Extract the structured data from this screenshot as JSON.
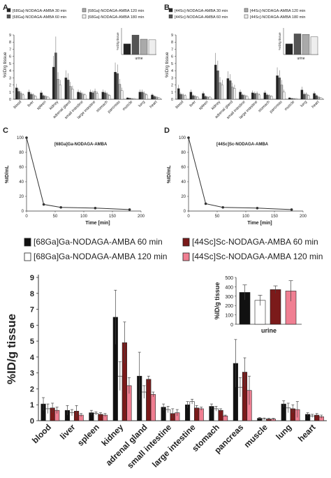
{
  "chart_data": [
    {
      "panel": "A",
      "type": "bar",
      "legend": [
        "[68Ga]-NODAGA-AMBA 30 min",
        "[68Ga]-NODAGA-AMBA 60 min",
        "[68Ga]-NODAGA-AMBA 120 min",
        "[68Ga]-NODAGA-AMBA 180 min"
      ],
      "ylabel": "%ID/g tissue",
      "ylim": [
        0,
        9
      ],
      "yticks": [
        "0",
        "1",
        "2",
        "3",
        "4",
        "5",
        "6",
        "7",
        "8",
        "9"
      ],
      "categories": [
        "blood",
        "liver",
        "spleen",
        "kidney",
        "adrenal gland",
        "small intestine",
        "large intestine",
        "stomach",
        "pancreas",
        "muscle",
        "lung",
        "heart"
      ],
      "series": [
        {
          "name": "[68Ga]-NODAGA-AMBA 30 min",
          "values": [
            1.6,
            1.0,
            0.9,
            4.5,
            3.0,
            1.0,
            1.0,
            1.0,
            3.8,
            0.2,
            1.0,
            0.6
          ]
        },
        {
          "name": "[68Ga]-NODAGA-AMBA 60 min",
          "values": [
            1.1,
            0.7,
            0.5,
            6.5,
            2.7,
            0.9,
            0.9,
            0.9,
            3.6,
            0.15,
            1.0,
            0.4
          ]
        },
        {
          "name": "[68Ga]-NODAGA-AMBA 120 min",
          "values": [
            0.8,
            0.6,
            0.4,
            2.8,
            1.8,
            0.7,
            1.1,
            0.7,
            2.1,
            0.1,
            0.8,
            0.3
          ]
        },
        {
          "name": "[68Ga]-NODAGA-AMBA 180 min",
          "values": [
            0.6,
            0.4,
            0.3,
            2.0,
            1.4,
            0.6,
            0.8,
            0.5,
            1.2,
            0.1,
            0.6,
            0.2
          ]
        }
      ],
      "inset": {
        "category": "urine",
        "ylabel": "%ID/g tissue",
        "values": [
          180,
          330,
          260,
          250
        ]
      }
    },
    {
      "panel": "B",
      "type": "bar",
      "legend": [
        "[44Sc]-NODAGA-AMBA 30 min",
        "[44Sc]-NODAGA-AMBA 60 min",
        "[44Sc]-NODAGA-AMBA 120 min",
        "[44Sc]-NODAGA-AMBA 180 min"
      ],
      "ylabel": "%ID/g tissue",
      "ylim": [
        0,
        9
      ],
      "yticks": [
        "0",
        "1",
        "2",
        "3",
        "4",
        "5",
        "6",
        "7",
        "8",
        "9"
      ],
      "categories": [
        "blood",
        "liver",
        "spleen",
        "kidney",
        "adrenal gland",
        "small intestine",
        "large intestine",
        "stomach",
        "pancreas",
        "muscle",
        "lung",
        "heart"
      ],
      "series": [
        {
          "name": "[44Sc]-NODAGA-AMBA 30 min",
          "values": [
            1.5,
            1.0,
            0.8,
            4.8,
            2.9,
            1.0,
            0.9,
            0.9,
            3.3,
            0.2,
            1.3,
            0.8
          ]
        },
        {
          "name": "[44Sc]-NODAGA-AMBA 60 min",
          "values": [
            0.7,
            0.5,
            0.4,
            4.0,
            2.6,
            0.6,
            0.8,
            0.6,
            3.0,
            0.12,
            0.7,
            0.5
          ]
        },
        {
          "name": "[44Sc]-NODAGA-AMBA 120 min",
          "values": [
            0.6,
            0.4,
            0.3,
            2.3,
            1.7,
            0.5,
            0.8,
            0.5,
            2.0,
            0.1,
            0.7,
            0.3
          ]
        },
        {
          "name": "[44Sc]-NODAGA-AMBA 180 min",
          "values": [
            0.5,
            0.3,
            0.3,
            2.0,
            1.5,
            0.4,
            0.6,
            0.4,
            1.0,
            0.1,
            0.5,
            0.2
          ]
        }
      ],
      "inset": {
        "category": "urine",
        "ylabel": "%ID/g tissue",
        "values": [
          180,
          350,
          340,
          300
        ]
      }
    },
    {
      "panel": "C",
      "type": "line",
      "annotation": "[68Ga]Ga-NODAGA-AMBA",
      "xlabel": "Time [min]",
      "ylabel": "%ID/mL",
      "xlim": [
        0,
        200
      ],
      "ylim": [
        0,
        100
      ],
      "xticks": [
        "0",
        "50",
        "100",
        "150",
        "200"
      ],
      "yticks": [
        "0",
        "20",
        "40",
        "60",
        "80",
        "100"
      ],
      "x": [
        0,
        30,
        60,
        120,
        180
      ],
      "y": [
        100,
        9,
        5,
        4,
        2
      ]
    },
    {
      "panel": "D",
      "type": "line",
      "annotation": "[44Sc]Sc-NODAGA-AMBA",
      "xlabel": "Time [min]",
      "ylabel": "%ID/mL",
      "xlim": [
        0,
        200
      ],
      "ylim": [
        0,
        100
      ],
      "xticks": [
        "0",
        "50",
        "100",
        "150",
        "200"
      ],
      "yticks": [
        "0",
        "20",
        "40",
        "60",
        "80",
        "100"
      ],
      "x": [
        0,
        30,
        60,
        120,
        180
      ],
      "y": [
        100,
        10,
        5,
        4,
        2
      ]
    },
    {
      "panel": "main",
      "type": "bar",
      "legend": [
        "[68Ga]Ga-NODAGA-AMBA 60 min",
        "[44Sc]Sc-NODAGA-AMBA 60 min",
        "[68Ga]Ga-NODAGA-AMBA 120 min",
        "[44Sc]Sc-NODAGA-AMBA 120 min"
      ],
      "ylabel": "%ID/g tissue",
      "ylim": [
        0,
        9
      ],
      "yticks": [
        "0",
        "1",
        "2",
        "3",
        "4",
        "5",
        "6",
        "7",
        "8",
        "9"
      ],
      "categories": [
        "blood",
        "liver",
        "spleen",
        "kidney",
        "adrenal gland",
        "small intestine",
        "large intestine",
        "stomach",
        "pancreas",
        "muscle",
        "lung",
        "heart"
      ],
      "series": [
        {
          "name": "[68Ga]Ga-NODAGA-AMBA 60 min",
          "color": "#111111",
          "values": [
            1.05,
            0.65,
            0.5,
            6.5,
            2.8,
            0.85,
            1.0,
            0.9,
            3.6,
            0.15,
            1.05,
            0.4
          ],
          "err": [
            0.4,
            0.3,
            0.15,
            1.7,
            1.5,
            0.2,
            0.2,
            0.15,
            1.5,
            0.05,
            0.2,
            0.1
          ]
        },
        {
          "name": "[68Ga]Ga-NODAGA-AMBA 120 min",
          "color": "#ffffff",
          "values": [
            0.75,
            0.5,
            0.45,
            2.8,
            1.8,
            0.7,
            1.2,
            0.75,
            2.1,
            0.12,
            0.8,
            0.3
          ],
          "err": [
            0.3,
            0.2,
            0.1,
            0.9,
            0.4,
            0.2,
            0.15,
            0.15,
            0.6,
            0.05,
            0.3,
            0.1
          ]
        },
        {
          "name": "[44Sc]Sc-NODAGA-AMBA 60 min",
          "color": "#7b1a1a",
          "values": [
            0.8,
            0.6,
            0.4,
            4.9,
            2.6,
            0.45,
            0.8,
            0.65,
            3.05,
            0.1,
            0.75,
            0.35
          ],
          "err": [
            0.3,
            0.35,
            0.1,
            1.3,
            0.2,
            0.3,
            0.15,
            0.1,
            0.9,
            0.05,
            0.25,
            0.1
          ]
        },
        {
          "name": "[44Sc]Sc-NODAGA-AMBA 120 min",
          "color": "#f07f92",
          "values": [
            0.65,
            0.35,
            0.35,
            2.2,
            1.65,
            0.5,
            0.75,
            0.3,
            1.9,
            0.1,
            0.7,
            0.25
          ],
          "err": [
            0.2,
            0.1,
            0.1,
            0.5,
            0.15,
            0.2,
            0.1,
            0.05,
            0.9,
            0.05,
            0.5,
            0.1
          ]
        }
      ],
      "inset": {
        "category": "urine",
        "ylabel": "%ID/g tissue",
        "ylim": [
          0,
          500
        ],
        "yticks": [
          "0",
          "100",
          "200",
          "300",
          "400",
          "500"
        ],
        "values": [
          340,
          255,
          370,
          355
        ],
        "err": [
          80,
          55,
          40,
          110
        ]
      }
    }
  ]
}
